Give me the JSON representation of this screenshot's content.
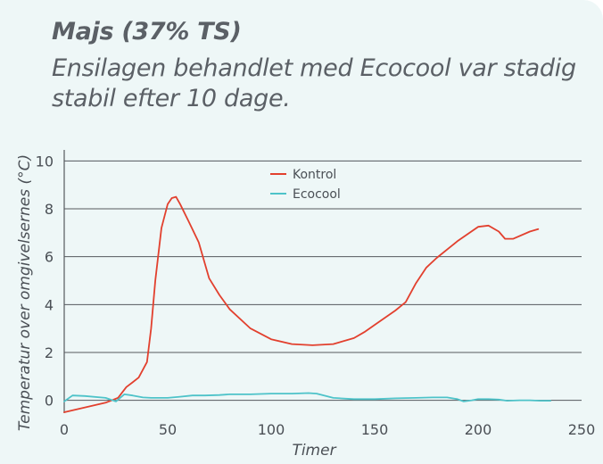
{
  "chart_data": {
    "type": "line",
    "title": "Majs (37% TS)",
    "subtitle": "Ensilagen behandlet med Ecocool var stadig stabil efter 10 dage.",
    "xlabel": "Timer",
    "ylabel": "Temperatur over omgivelsernes (°C)",
    "xlim": [
      0,
      250
    ],
    "ylim": [
      -0.5,
      10.5
    ],
    "xticks": [
      0,
      50,
      100,
      150,
      200,
      250
    ],
    "yticks": [
      0,
      2,
      4,
      6,
      8,
      10
    ],
    "grid": "horizontal",
    "legend_position": "top-center",
    "series": [
      {
        "name": "Kontrol",
        "color": "#e2402e",
        "x": [
          0,
          10,
          20,
          26,
          30,
          33,
          36,
          40,
          42,
          44,
          47,
          50,
          52,
          54,
          56,
          60,
          65,
          70,
          75,
          80,
          90,
          100,
          110,
          120,
          130,
          140,
          145,
          150,
          160,
          165,
          170,
          175,
          180,
          190,
          200,
          205,
          210,
          213,
          217,
          225,
          229
        ],
        "y": [
          -0.5,
          -0.3,
          -0.1,
          0.1,
          0.55,
          0.75,
          0.95,
          1.6,
          3.0,
          5.0,
          7.2,
          8.2,
          8.45,
          8.5,
          8.2,
          7.5,
          6.6,
          5.1,
          4.4,
          3.8,
          3.0,
          2.55,
          2.35,
          2.3,
          2.35,
          2.6,
          2.85,
          3.15,
          3.75,
          4.1,
          4.9,
          5.55,
          5.95,
          6.65,
          7.25,
          7.3,
          7.05,
          6.75,
          6.75,
          7.05,
          7.15
        ]
      },
      {
        "name": "Ecocool",
        "color": "#4ec3c9",
        "x": [
          0,
          4,
          10,
          20,
          25,
          29,
          33,
          38,
          42,
          50,
          56,
          62,
          68,
          75,
          80,
          90,
          100,
          110,
          118,
          122,
          130,
          140,
          150,
          160,
          170,
          178,
          185,
          190,
          193,
          197,
          200,
          205,
          210,
          214,
          220,
          225,
          230,
          235
        ],
        "y": [
          -0.05,
          0.2,
          0.18,
          0.1,
          -0.05,
          0.25,
          0.2,
          0.12,
          0.1,
          0.1,
          0.15,
          0.2,
          0.2,
          0.22,
          0.25,
          0.25,
          0.28,
          0.28,
          0.3,
          0.28,
          0.1,
          0.05,
          0.05,
          0.08,
          0.1,
          0.12,
          0.12,
          0.05,
          -0.05,
          0.0,
          0.05,
          0.05,
          0.03,
          -0.02,
          0.0,
          0.0,
          -0.02,
          -0.02
        ]
      }
    ]
  }
}
